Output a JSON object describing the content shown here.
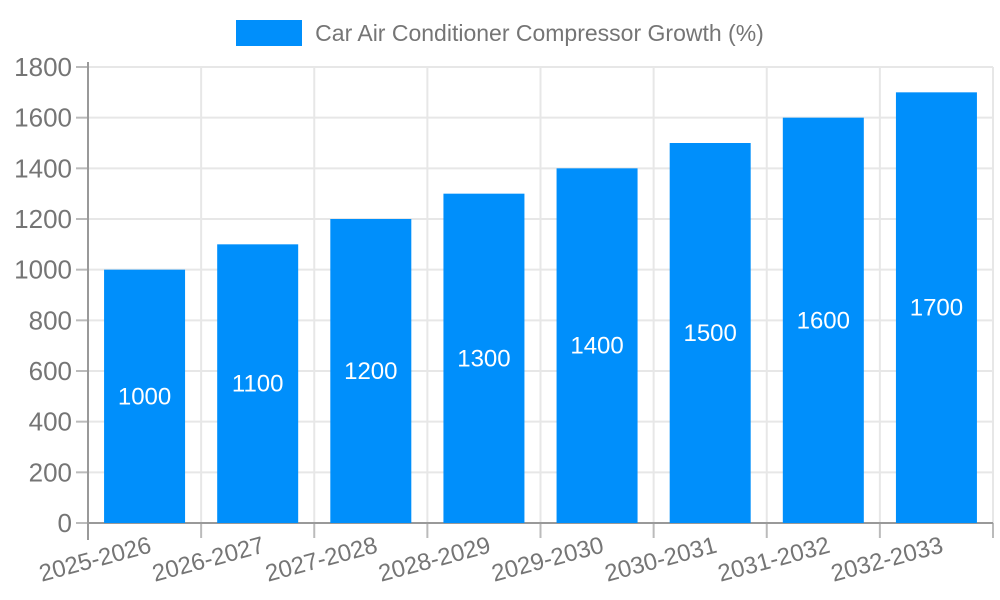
{
  "chart_data": {
    "type": "bar",
    "title": "Car Air Conditioner Compressor Growth (%)",
    "categories": [
      "2025-2026",
      "2026-2027",
      "2027-2028",
      "2028-2029",
      "2029-2030",
      "2030-2031",
      "2031-2032",
      "2032-2033"
    ],
    "values": [
      1000,
      1100,
      1200,
      1300,
      1400,
      1500,
      1600,
      1700
    ],
    "bar_value_labels": [
      "1000",
      "1100",
      "1200",
      "1300",
      "1400",
      "1500",
      "1600",
      "1700"
    ],
    "xlabel": "",
    "ylabel": "",
    "ylim": [
      0,
      1800
    ],
    "yticks": [
      0,
      200,
      400,
      600,
      800,
      1000,
      1200,
      1400,
      1600,
      1800
    ],
    "grid": true,
    "legend_position": "top",
    "x_label_rotation": -15,
    "colors": {
      "bar": "#008FFB",
      "bar_value_text": "#ffffff",
      "axis_text": "#757575",
      "axis_line": "#999999",
      "gridline": "#e7e7e7",
      "tick": "#bbbbbb",
      "background": "#ffffff"
    }
  }
}
